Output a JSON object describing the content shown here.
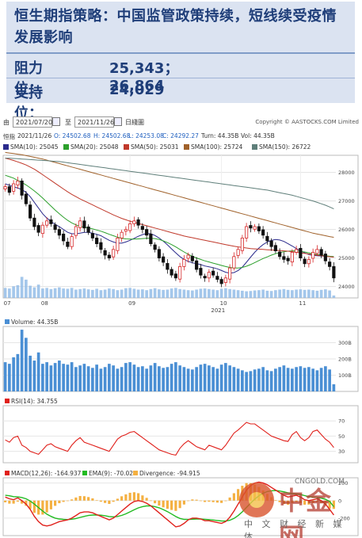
{
  "headline": "恒生期指策略：中国监管政策持续，短线续受疫情发展影响",
  "levels": [
    {
      "label": "阻力位：",
      "value": "25,343；26,864"
    },
    {
      "label": "支持位：",
      "value": "24,029"
    }
  ],
  "toolbar": {
    "from_label": "由",
    "from_date": "2021/07/20",
    "to_label": "至",
    "to_date": "2021/11/26",
    "interval": "日綫圖",
    "copyright": "Copyright © AASTOCKS.COM Limited"
  },
  "ohlc": {
    "label": "恒指",
    "date": "2021/11/26",
    "open": "O: 24502.68",
    "high": "H: 24502.68",
    "low": "L: 24253.08",
    "close": "C: 24292.27",
    "turnover": "Turn: 44.35B",
    "volume": "Vol: 44.35B"
  },
  "colors": {
    "up": "#d62728",
    "down": "#111111",
    "sma10": "#2b2b8c",
    "sma20": "#2ca02c",
    "sma50": "#c0392b",
    "sma100": "#a0612a",
    "sma150": "#5f7f7a",
    "volume": "#4a8fd4",
    "rsi": "#e0201b",
    "macd": "#e0201b",
    "ema": "#22bb22",
    "divergence": "#f4b041"
  },
  "watermark": {
    "brand": "中金网",
    "url": "CNGOLD.COM",
    "tagline": "中 文 财 经 新 媒 体"
  },
  "chart_data": [
    {
      "type": "candlestick",
      "title": "",
      "ylim": [
        23600,
        28600
      ],
      "y_ticks": [
        24000,
        25000,
        26000,
        27000,
        28000
      ],
      "x_tick_labels": [
        "07",
        "08",
        "09",
        "10",
        "11"
      ],
      "x_tick_indices": [
        0,
        9,
        30,
        52,
        71
      ],
      "year_label": "2021",
      "legend": [
        {
          "name": "SMA(10): 25045",
          "color_key": "sma10"
        },
        {
          "name": "SMA(20): 25048",
          "color_key": "sma20"
        },
        {
          "name": "SMA(50): 25031",
          "color_key": "sma50"
        },
        {
          "name": "SMA(100): 25724",
          "color_key": "sma100"
        },
        {
          "name": "SMA(150): 26722",
          "color_key": "sma150"
        }
      ],
      "closes": [
        27500,
        27300,
        27600,
        27700,
        27200,
        26900,
        26400,
        26100,
        25900,
        26150,
        26300,
        26200,
        26000,
        25800,
        25600,
        25400,
        25750,
        26100,
        26300,
        26050,
        25900,
        25700,
        25500,
        25300,
        25100,
        25000,
        25300,
        25700,
        25900,
        26000,
        26200,
        26300,
        26150,
        26000,
        25800,
        25500,
        25300,
        25000,
        24850,
        24600,
        24400,
        24300,
        24700,
        24950,
        25100,
        24900,
        24600,
        24400,
        24300,
        24500,
        24400,
        24250,
        24100,
        24300,
        24650,
        25050,
        25300,
        25700,
        26100,
        26050,
        26100,
        25950,
        25800,
        25600,
        25400,
        25250,
        25050,
        24950,
        24900,
        25200,
        25300,
        25000,
        24800,
        24950,
        25200,
        25300,
        25100,
        24900,
        24700,
        24300
      ],
      "sma_series": [
        {
          "name": "SMA10",
          "values": [
            27600,
            27550,
            27500,
            27450,
            27400,
            27300,
            27150,
            26950,
            26750,
            26550,
            26400,
            26280,
            26180,
            26100,
            26000,
            25900,
            25850,
            25850,
            25870,
            25900,
            25900,
            25870,
            25830,
            25780,
            25700,
            25620,
            25560,
            25520,
            25520,
            25560,
            25620,
            25690,
            25760,
            25820,
            25860,
            25850,
            25790,
            25700,
            25590,
            25460,
            25320,
            25180,
            25050,
            24950,
            24880,
            24830,
            24800,
            24770,
            24720,
            24690,
            24660,
            24620,
            24560,
            24500,
            24470,
            24490,
            24560,
            24680,
            24850,
            25030,
            25200,
            25350,
            25470,
            25560,
            25620,
            25650,
            25630,
            25580,
            25500,
            25420,
            25330,
            25250,
            25180,
            25120,
            25090,
            25080,
            25070,
            25060,
            25050,
            25045
          ]
        },
        {
          "name": "SMA20",
          "values": [
            27900,
            27850,
            27800,
            27720,
            27650,
            27560,
            27460,
            27350,
            27230,
            27100,
            26960,
            26820,
            26680,
            26550,
            26430,
            26320,
            26230,
            26160,
            26110,
            26080,
            26050,
            26020,
            25980,
            25940,
            25890,
            25830,
            25780,
            25730,
            25690,
            25670,
            25660,
            25660,
            25670,
            25680,
            25690,
            25690,
            25680,
            25650,
            25600,
            25540,
            25470,
            25390,
            25300,
            25210,
            25130,
            25060,
            25000,
            24950,
            24900,
            24860,
            24820,
            24780,
            24740,
            24700,
            24670,
            24650,
            24650,
            24670,
            24710,
            24770,
            24840,
            24910,
            24980,
            25040,
            25100,
            25150,
            25190,
            25220,
            25240,
            25250,
            25250,
            25230,
            25210,
            25180,
            25150,
            25120,
            25100,
            25080,
            25060,
            25048
          ]
        },
        {
          "name": "SMA50",
          "values": [
            28500,
            28460,
            28420,
            28370,
            28320,
            28260,
            28190,
            28110,
            28020,
            27920,
            27820,
            27720,
            27620,
            27520,
            27420,
            27320,
            27230,
            27150,
            27070,
            27000,
            26930,
            26860,
            26790,
            26720,
            26650,
            26580,
            26510,
            26450,
            26390,
            26340,
            26290,
            26250,
            26210,
            26170,
            26130,
            26090,
            26050,
            26010,
            25970,
            25930,
            25890,
            25850,
            25810,
            25770,
            25740,
            25710,
            25680,
            25650,
            25620,
            25590,
            25560,
            25530,
            25500,
            25470,
            25440,
            25410,
            25390,
            25370,
            25350,
            25330,
            25320,
            25310,
            25300,
            25290,
            25280,
            25270,
            25260,
            25250,
            25240,
            25220,
            25200,
            25180,
            25160,
            25140,
            25120,
            25100,
            25080,
            25060,
            25045,
            25031
          ]
        },
        {
          "name": "SMA100",
          "values": [
            28700,
            28680,
            28660,
            28640,
            28620,
            28590,
            28560,
            28530,
            28500,
            28470,
            28430,
            28390,
            28350,
            28310,
            28270,
            28230,
            28190,
            28150,
            28110,
            28070,
            28030,
            27990,
            27950,
            27910,
            27870,
            27830,
            27790,
            27750,
            27710,
            27670,
            27630,
            27590,
            27550,
            27510,
            27470,
            27430,
            27390,
            27350,
            27310,
            27270,
            27230,
            27190,
            27150,
            27110,
            27070,
            27030,
            26990,
            26950,
            26910,
            26870,
            26830,
            26790,
            26750,
            26710,
            26670,
            26630,
            26590,
            26550,
            26510,
            26470,
            26430,
            26390,
            26350,
            26310,
            26270,
            26230,
            26190,
            26150,
            26110,
            26070,
            26030,
            25990,
            25950,
            25910,
            25870,
            25840,
            25810,
            25780,
            25750,
            25724
          ]
        },
        {
          "name": "SMA150",
          "values": [
            28500,
            28500,
            28490,
            28480,
            28470,
            28460,
            28450,
            28440,
            28430,
            28420,
            28410,
            28400,
            28390,
            28380,
            28360,
            28340,
            28320,
            28300,
            28280,
            28260,
            28240,
            28220,
            28200,
            28180,
            28160,
            28140,
            28120,
            28100,
            28080,
            28060,
            28040,
            28020,
            28000,
            27980,
            27960,
            27940,
            27920,
            27900,
            27880,
            27860,
            27840,
            27820,
            27800,
            27780,
            27760,
            27740,
            27720,
            27700,
            27680,
            27660,
            27640,
            27620,
            27600,
            27580,
            27560,
            27540,
            27520,
            27500,
            27480,
            27460,
            27440,
            27420,
            27400,
            27380,
            27350,
            27320,
            27290,
            27260,
            27230,
            27200,
            27160,
            27120,
            27080,
            27040,
            27000,
            26950,
            26900,
            26850,
            26790,
            26722
          ]
        }
      ]
    },
    {
      "type": "bar",
      "title": "Volume: 44.35B",
      "ylim": [
        0,
        400
      ],
      "y_tick_labels": [
        "100B",
        "200B",
        "300B"
      ],
      "y_ticks": [
        100,
        200,
        300
      ],
      "values": [
        180,
        170,
        210,
        230,
        380,
        330,
        220,
        190,
        240,
        170,
        180,
        160,
        175,
        190,
        170,
        165,
        180,
        150,
        160,
        170,
        155,
        145,
        165,
        140,
        150,
        170,
        160,
        140,
        150,
        175,
        180,
        165,
        150,
        155,
        140,
        160,
        175,
        155,
        145,
        150,
        170,
        180,
        160,
        150,
        140,
        135,
        150,
        165,
        170,
        160,
        150,
        140,
        165,
        175,
        160,
        150,
        140,
        130,
        120,
        125,
        135,
        140,
        150,
        130,
        125,
        140,
        150,
        160,
        145,
        140,
        150,
        155,
        145,
        150,
        140,
        130,
        145,
        155,
        135,
        44
      ]
    },
    {
      "type": "line",
      "title": "RSI(14): 34.755",
      "ylim": [
        0,
        100
      ],
      "y_ticks": [
        30,
        50,
        70
      ],
      "values": [
        45,
        42,
        48,
        50,
        38,
        35,
        30,
        28,
        26,
        32,
        38,
        40,
        36,
        34,
        32,
        30,
        38,
        44,
        48,
        42,
        40,
        38,
        36,
        34,
        32,
        30,
        38,
        46,
        50,
        52,
        55,
        56,
        52,
        48,
        44,
        40,
        36,
        32,
        30,
        28,
        26,
        25,
        34,
        40,
        44,
        40,
        36,
        34,
        32,
        38,
        36,
        34,
        32,
        38,
        46,
        54,
        58,
        63,
        68,
        66,
        66,
        62,
        58,
        54,
        50,
        48,
        46,
        44,
        43,
        52,
        56,
        48,
        44,
        48,
        56,
        58,
        52,
        46,
        42,
        35
      ]
    },
    {
      "type": "line",
      "title": "MACD(12,26): -164.937",
      "title_ema": "EMA(9): -70.022",
      "title_div": "Divergence: -94.915",
      "ylim": [
        -400,
        260
      ],
      "y_ticks": [
        -200,
        0,
        200
      ],
      "y_tick_labels": [
        "-200",
        "0",
        "200"
      ],
      "macd": [
        40,
        20,
        10,
        30,
        0,
        -40,
        -100,
        -180,
        -240,
        -280,
        -290,
        -280,
        -260,
        -240,
        -230,
        -220,
        -200,
        -170,
        -140,
        -130,
        -130,
        -140,
        -160,
        -180,
        -200,
        -220,
        -200,
        -160,
        -120,
        -80,
        -40,
        -10,
        0,
        -10,
        -30,
        -60,
        -100,
        -140,
        -180,
        -220,
        -260,
        -300,
        -290,
        -260,
        -220,
        -200,
        -200,
        -210,
        -230,
        -230,
        -240,
        -250,
        -260,
        -240,
        -190,
        -120,
        -40,
        40,
        120,
        170,
        200,
        210,
        200,
        180,
        150,
        120,
        90,
        60,
        40,
        50,
        60,
        40,
        10,
        0,
        10,
        20,
        0,
        -40,
        -100,
        -165
      ],
      "ema": [
        60,
        55,
        45,
        42,
        35,
        20,
        -5,
        -40,
        -80,
        -120,
        -155,
        -180,
        -200,
        -210,
        -215,
        -217,
        -213,
        -205,
        -192,
        -180,
        -170,
        -165,
        -164,
        -167,
        -173,
        -182,
        -186,
        -181,
        -169,
        -151,
        -129,
        -105,
        -84,
        -69,
        -61,
        -61,
        -69,
        -83,
        -103,
        -126,
        -153,
        -182,
        -204,
        -215,
        -216,
        -213,
        -210,
        -210,
        -214,
        -217,
        -222,
        -227,
        -233,
        -234,
        -225,
        -204,
        -171,
        -129,
        -79,
        -29,
        17,
        55,
        84,
        103,
        112,
        114,
        109,
        100,
        88,
        80,
        76,
        69,
        57,
        46,
        39,
        35,
        28,
        14,
        -9,
        -70
      ],
      "divergence": [
        -20,
        -35,
        -35,
        -12,
        -35,
        -60,
        -95,
        -140,
        -160,
        -160,
        -135,
        -100,
        -60,
        -30,
        -15,
        -3,
        13,
        35,
        52,
        50,
        40,
        25,
        4,
        -13,
        -27,
        -38,
        -14,
        21,
        49,
        71,
        89,
        95,
        84,
        59,
        31,
        1,
        -31,
        -57,
        -77,
        -94,
        -107,
        -118,
        -86,
        -45,
        -4,
        13,
        10,
        0,
        -16,
        -13,
        -18,
        -23,
        -27,
        -6,
        35,
        84,
        131,
        169,
        199,
        199,
        183,
        155,
        116,
        77,
        38,
        6,
        -19,
        -40,
        -48,
        -30,
        -16,
        -29,
        -47,
        -46,
        -29,
        -15,
        -28,
        -54,
        -91,
        -95
      ]
    }
  ]
}
